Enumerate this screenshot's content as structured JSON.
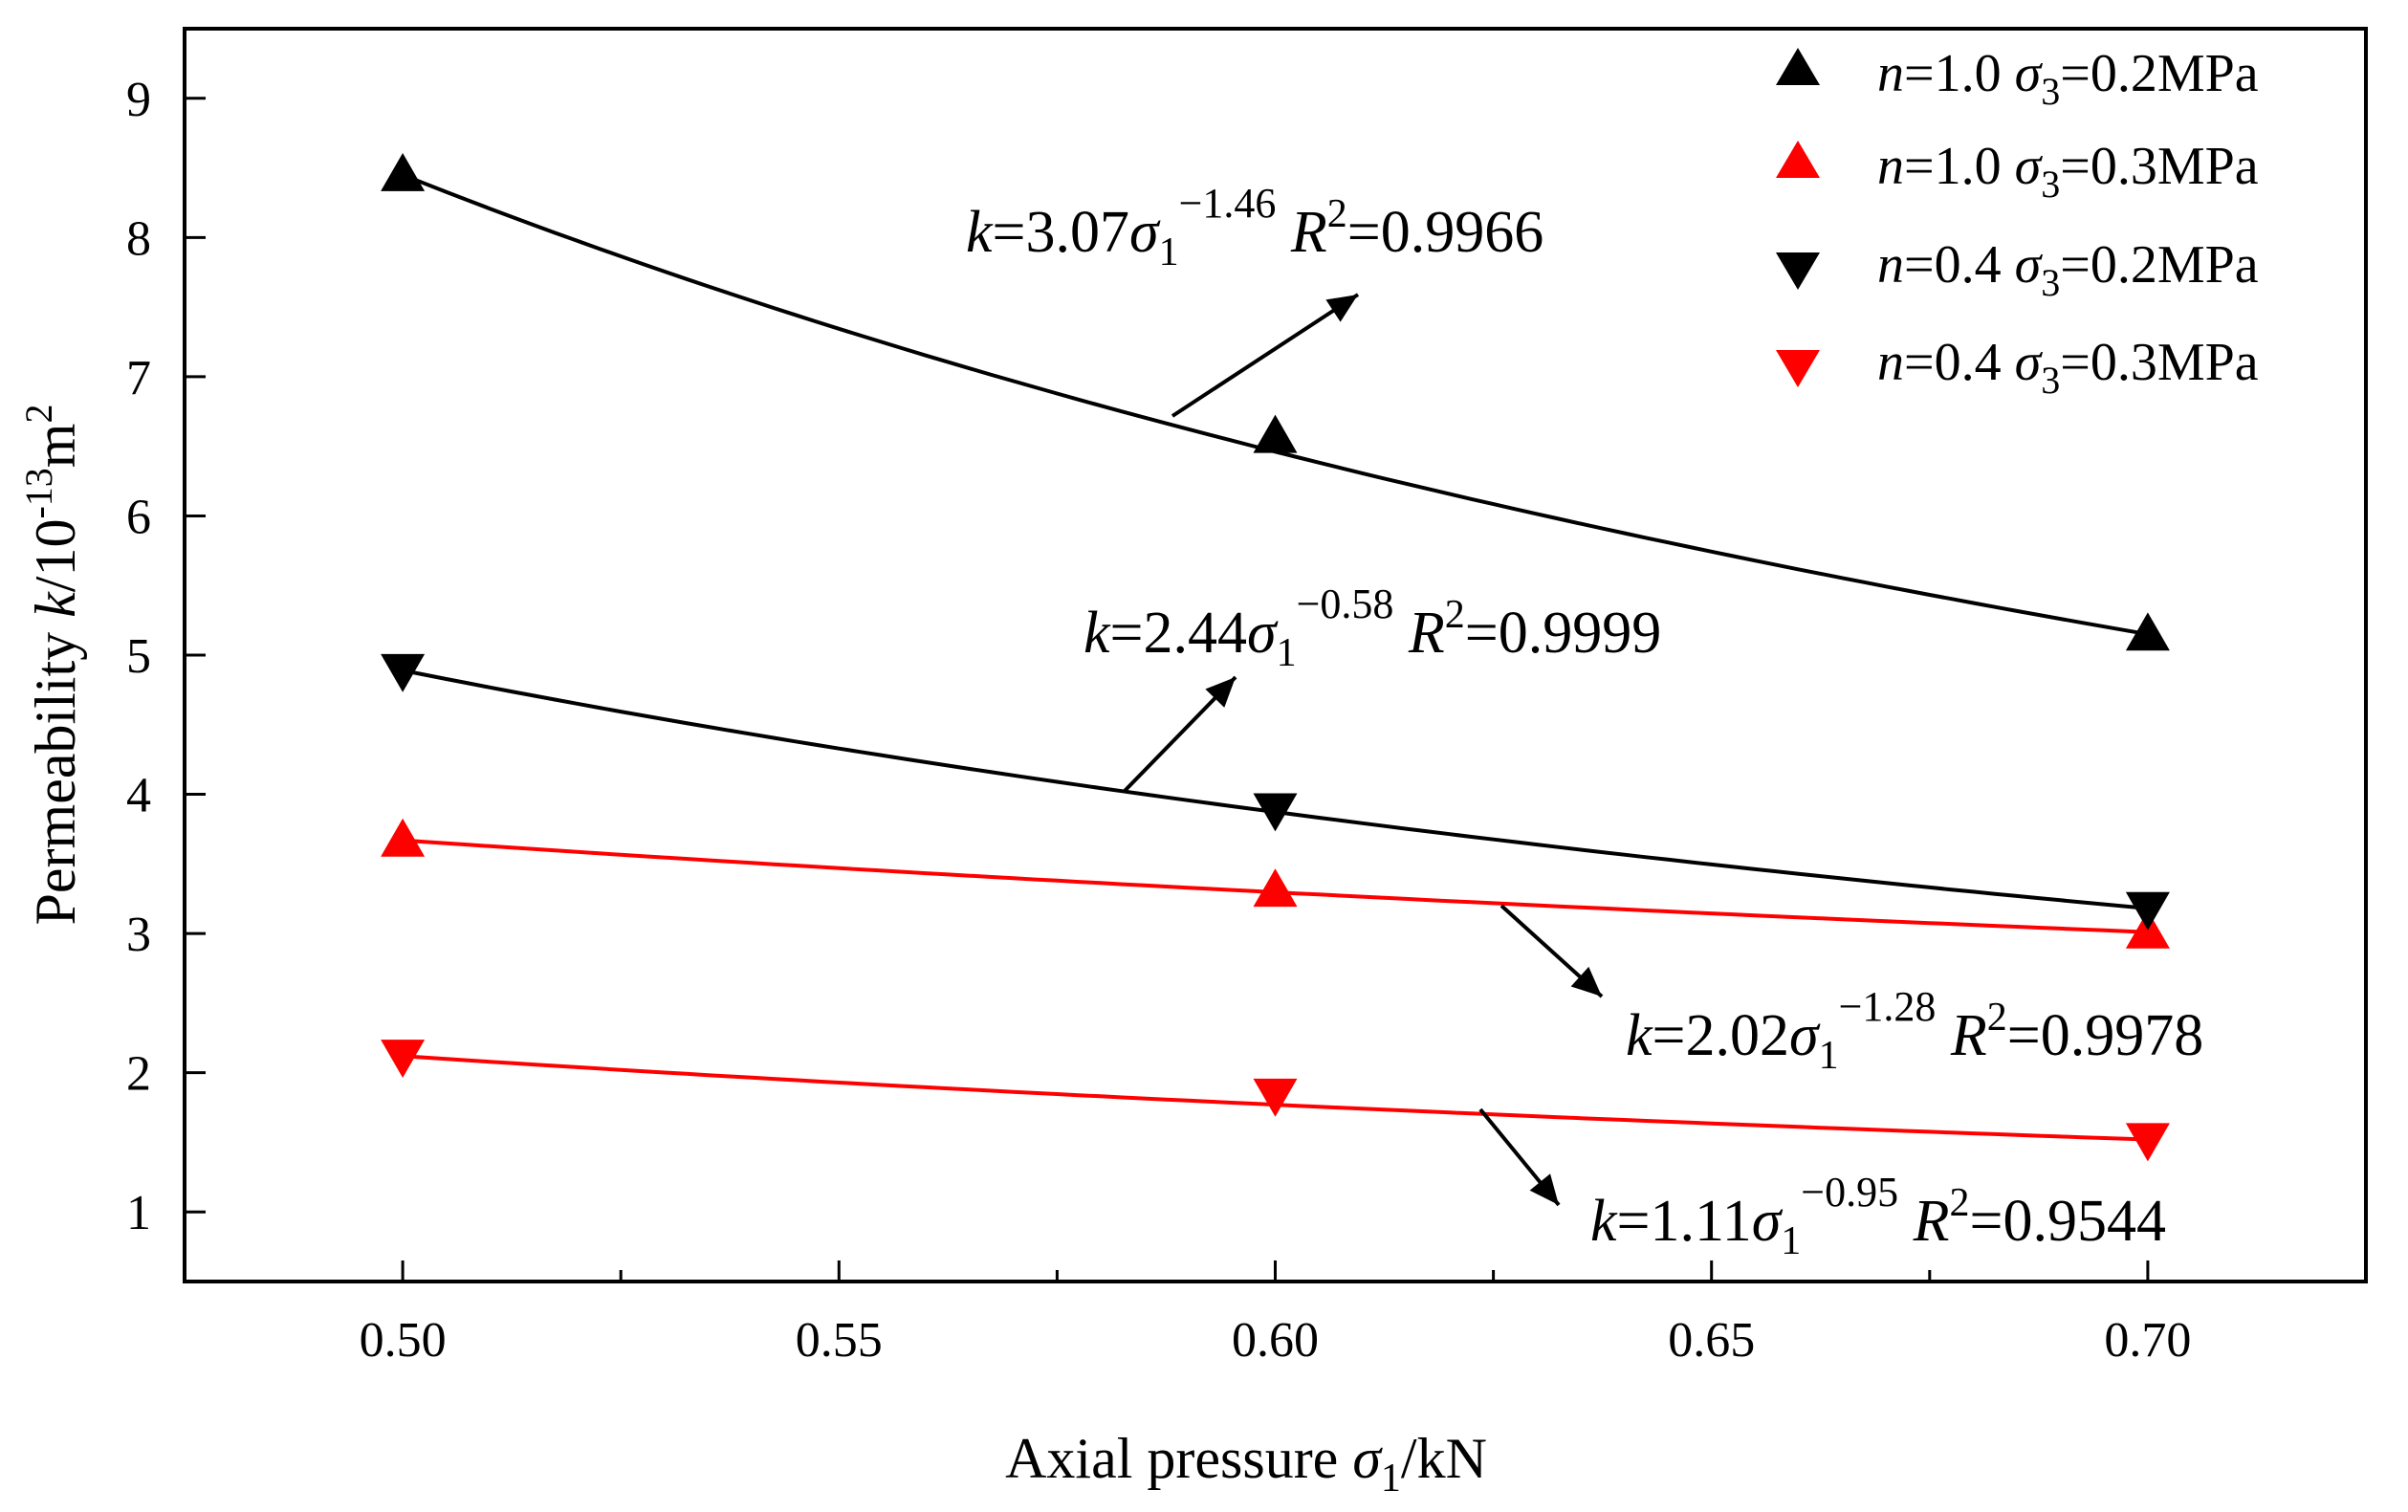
{
  "chart_data": {
    "type": "scatter",
    "xlabel": {
      "prefix": "Axial pressure ",
      "sym": "σ",
      "sub": "1",
      "suffix": "/kN"
    },
    "ylabel": {
      "prefix": "Permeability ",
      "sym": "k",
      "mid": "/10",
      "exp": "-13",
      "unit": "m",
      "unit_exp": "2"
    },
    "xlim": [
      0.475,
      0.725
    ],
    "ylim": [
      0.5,
      9.5
    ],
    "x_ticks": [
      {
        "value": 0.5,
        "label": "0.50"
      },
      {
        "value": 0.55,
        "label": "0.55"
      },
      {
        "value": 0.6,
        "label": "0.60"
      },
      {
        "value": 0.65,
        "label": "0.65"
      },
      {
        "value": 0.7,
        "label": "0.70"
      }
    ],
    "y_ticks": [
      {
        "value": 1,
        "label": "1"
      },
      {
        "value": 2,
        "label": "2"
      },
      {
        "value": 3,
        "label": "3"
      },
      {
        "value": 4,
        "label": "4"
      },
      {
        "value": 5,
        "label": "5"
      },
      {
        "value": 6,
        "label": "6"
      },
      {
        "value": 7,
        "label": "7"
      },
      {
        "value": 8,
        "label": "8"
      },
      {
        "value": 9,
        "label": "9"
      }
    ],
    "series": [
      {
        "name": "n=1.0 σ3=0.2MPa",
        "n": "1.0",
        "sigma3": "0.2MPa",
        "marker": "triangle-up",
        "color": "#000000",
        "x": [
          0.5,
          0.6,
          0.7
        ],
        "y": [
          8.45,
          6.57,
          5.15
        ],
        "fit": {
          "a": 3.07,
          "b": -1.46,
          "r2": "0.9966",
          "label": {
            "k": "k",
            "a": "3.07",
            "exp": "−1.46",
            "r2": "0.9966"
          }
        }
      },
      {
        "name": "n=1.0 σ3=0.3MPa",
        "n": "1.0",
        "sigma3": "0.3MPa",
        "marker": "triangle-up",
        "color": "#ff0000",
        "x": [
          0.5,
          0.6,
          0.7
        ],
        "y": [
          3.67,
          3.31,
          3.01
        ],
        "fit": {
          "a": 2.02,
          "b": -1.28,
          "r2": "0.9978",
          "label": {
            "k": "k",
            "a": "2.02",
            "exp": "−1.28",
            "r2": "0.9978"
          }
        }
      },
      {
        "name": "n=0.4 σ3=0.2MPa",
        "n": "0.4",
        "sigma3": "0.2MPa",
        "marker": "triangle-down",
        "color": "#000000",
        "x": [
          0.5,
          0.6,
          0.7
        ],
        "y": [
          4.89,
          3.89,
          3.18
        ],
        "fit": {
          "a": 2.44,
          "b": -0.58,
          "r2": "0.9999",
          "label": {
            "k": "k",
            "a": "2.44",
            "exp": "−0.58",
            "r2": "0.9999"
          }
        }
      },
      {
        "name": "n=0.4 σ3=0.3MPa",
        "n": "0.4",
        "sigma3": "0.3MPa",
        "marker": "triangle-down",
        "color": "#ff0000",
        "x": [
          0.5,
          0.6,
          0.7
        ],
        "y": [
          2.12,
          1.84,
          1.52
        ],
        "fit": {
          "a": 1.11,
          "b": -0.95,
          "r2": "0.9544",
          "label": {
            "k": "k",
            "a": "1.11",
            "exp": "−0.95",
            "r2": "0.9544"
          }
        }
      }
    ],
    "legend_position": "top-right"
  }
}
